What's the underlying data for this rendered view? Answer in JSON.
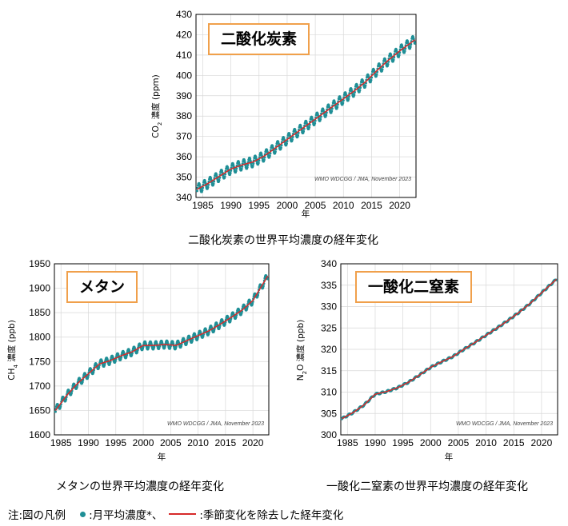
{
  "colors": {
    "dots": "#1f8f96",
    "trend": "#d62a2a",
    "box_border": "#f0a04b",
    "grid": "#d8d8d8"
  },
  "chart_data": [
    {
      "id": "co2",
      "type": "line",
      "box_label": "二酸化炭素",
      "caption": "二酸化炭素の世界平均濃度の経年変化",
      "ylabel_main": "CO",
      "ylabel_sub": "2",
      "ylabel_rest": " 濃度 (ppm)",
      "xlabel": "年",
      "credit": "WMO WDCGG / JMA, November 2023",
      "xlim": [
        1983.8,
        2022.9
      ],
      "ylim": [
        340,
        430
      ],
      "xticks": [
        1985,
        1990,
        1995,
        2000,
        2005,
        2010,
        2015,
        2020
      ],
      "yticks": [
        340,
        350,
        360,
        370,
        380,
        390,
        400,
        410,
        420,
        430
      ],
      "seasonal_amplitude": 2.5,
      "series": [
        {
          "name": "",
          "x": [
            1984,
            1986,
            1988,
            1990,
            1992,
            1994,
            1996,
            1998,
            2000,
            2002,
            2004,
            2006,
            2008,
            2010,
            2012,
            2014,
            2016,
            2018,
            2020,
            2022.7
          ],
          "values": [
            344.0,
            347.0,
            350.5,
            354.0,
            356.0,
            357.5,
            360.5,
            364.5,
            368.5,
            372.5,
            376.5,
            380.5,
            384.5,
            388.5,
            392.5,
            397.0,
            402.5,
            407.5,
            412.0,
            417.5
          ]
        }
      ]
    },
    {
      "id": "ch4",
      "type": "line",
      "box_label": "メタン",
      "caption": "メタンの世界平均濃度の経年変化",
      "ylabel_main": "CH",
      "ylabel_sub": "4",
      "ylabel_rest": " 濃度 (ppb)",
      "xlabel": "年",
      "credit": "WMO WDCGG / JMA, November 2023",
      "xlim": [
        1983.8,
        2022.9
      ],
      "ylim": [
        1600,
        1950
      ],
      "xticks": [
        1985,
        1990,
        1995,
        2000,
        2005,
        2010,
        2015,
        2020
      ],
      "yticks": [
        1600,
        1650,
        1700,
        1750,
        1800,
        1850,
        1900,
        1950
      ],
      "seasonal_amplitude": 8,
      "series": [
        {
          "name": "",
          "x": [
            1984,
            1986,
            1988,
            1990,
            1992,
            1994,
            1996,
            1998,
            2000,
            2002,
            2004,
            2006,
            2008,
            2010,
            2012,
            2014,
            2016,
            2018,
            2020,
            2022.7
          ],
          "values": [
            1650,
            1680,
            1705,
            1725,
            1745,
            1752,
            1762,
            1770,
            1783,
            1783,
            1785,
            1783,
            1793,
            1803,
            1813,
            1826,
            1840,
            1855,
            1875,
            1925
          ]
        }
      ]
    },
    {
      "id": "n2o",
      "type": "line",
      "box_label": "一酸化二窒素",
      "caption": "一酸化二窒素の世界平均濃度の経年変化",
      "ylabel_main": "N",
      "ylabel_sub": "2",
      "ylabel_rest": "O 濃度 (ppb)",
      "xlabel": "年",
      "credit": "WMO WDCGG / JMA, November 2023",
      "xlim": [
        1983.8,
        2022.9
      ],
      "ylim": [
        300,
        340
      ],
      "xticks": [
        1985,
        1990,
        1995,
        2000,
        2005,
        2010,
        2015,
        2020
      ],
      "yticks": [
        300,
        305,
        310,
        315,
        320,
        325,
        330,
        335,
        340
      ],
      "seasonal_amplitude": 0.2,
      "series": [
        {
          "name": "",
          "x": [
            1984,
            1986,
            1988,
            1990,
            1992,
            1994,
            1996,
            1998,
            2000,
            2002,
            2004,
            2006,
            2008,
            2010,
            2012,
            2014,
            2016,
            2018,
            2020,
            2022.7
          ],
          "values": [
            303.8,
            305.2,
            307.0,
            309.5,
            310.1,
            311.0,
            312.3,
            314.0,
            315.8,
            317.1,
            318.3,
            320.0,
            321.6,
            323.3,
            325.0,
            326.8,
            328.7,
            330.8,
            333.2,
            336.4
          ]
        }
      ]
    }
  ],
  "legend": {
    "prefix": "注:図の凡例",
    "dots_label": ":月平均濃度*、",
    "line_label": ":季節変化を除去した経年変化"
  }
}
